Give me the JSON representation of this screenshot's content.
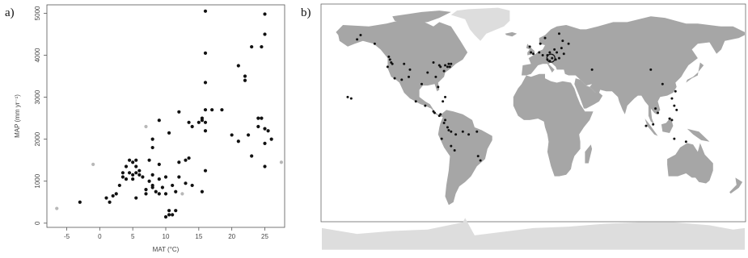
{
  "panels": {
    "a_label": "a)",
    "b_label": "b)"
  },
  "chart_data": [
    {
      "type": "scatter",
      "title": "",
      "xlabel": "MAT (°C)",
      "ylabel": "MAP (mm yr⁻¹)",
      "xlim": [
        -8,
        28
      ],
      "ylim": [
        -100,
        5200
      ],
      "xticks": [
        -5,
        0,
        5,
        10,
        15,
        20,
        25
      ],
      "yticks": [
        0,
        1000,
        2000,
        3000,
        4000,
        5000
      ],
      "grid": false,
      "series": [
        {
          "color": "#111111",
          "points": [
            [
              16,
              5050
            ],
            [
              25,
              4980
            ],
            [
              25,
              4500
            ],
            [
              16,
              4050
            ],
            [
              23,
              4200
            ],
            [
              24.5,
              4200
            ],
            [
              21,
              3750
            ],
            [
              22,
              3500
            ],
            [
              22,
              3400
            ],
            [
              16,
              3350
            ],
            [
              16,
              2700
            ],
            [
              17,
              2700
            ],
            [
              18.5,
              2700
            ],
            [
              12,
              2650
            ],
            [
              15.5,
              2500
            ],
            [
              15.5,
              2450
            ],
            [
              16,
              2400
            ],
            [
              13.5,
              2400
            ],
            [
              15,
              2400
            ],
            [
              14,
              2300
            ],
            [
              9,
              2450
            ],
            [
              24,
              2500
            ],
            [
              24.5,
              2500
            ],
            [
              24,
              2300
            ],
            [
              25,
              2250
            ],
            [
              25.5,
              2200
            ],
            [
              22.5,
              2100
            ],
            [
              20,
              2100
            ],
            [
              16,
              2200
            ],
            [
              10.5,
              2150
            ],
            [
              21,
              1950
            ],
            [
              26,
              2000
            ],
            [
              25,
              1900
            ],
            [
              8,
              2000
            ],
            [
              8,
              1800
            ],
            [
              23,
              1600
            ],
            [
              13,
              1500
            ],
            [
              13.5,
              1550
            ],
            [
              12,
              1450
            ],
            [
              9,
              1400
            ],
            [
              25,
              1350
            ],
            [
              7.5,
              1500
            ],
            [
              5.5,
              1500
            ],
            [
              4.5,
              1500
            ],
            [
              16,
              1250
            ],
            [
              5,
              1450
            ],
            [
              5.5,
              1350
            ],
            [
              4,
              1350
            ],
            [
              6,
              1250
            ],
            [
              4.5,
              1200
            ],
            [
              5.5,
              1200
            ],
            [
              5,
              1150
            ],
            [
              6,
              1150
            ],
            [
              6.5,
              1100
            ],
            [
              5,
              1050
            ],
            [
              3.5,
              1200
            ],
            [
              3.5,
              1100
            ],
            [
              4,
              1050
            ],
            [
              8,
              1150
            ],
            [
              10,
              1100
            ],
            [
              12,
              1100
            ],
            [
              9,
              1050
            ],
            [
              7.5,
              1000
            ],
            [
              11,
              900
            ],
            [
              13,
              950
            ],
            [
              8,
              900
            ],
            [
              8,
              850
            ],
            [
              9.5,
              850
            ],
            [
              7,
              800
            ],
            [
              8.5,
              750
            ],
            [
              10,
              700
            ],
            [
              11.5,
              750
            ],
            [
              14,
              900
            ],
            [
              3,
              900
            ],
            [
              7,
              700
            ],
            [
              9,
              700
            ],
            [
              5.5,
              600
            ],
            [
              2.5,
              700
            ],
            [
              2,
              650
            ],
            [
              1,
              600
            ],
            [
              1.5,
              500
            ],
            [
              -3,
              500
            ],
            [
              10.5,
              300
            ],
            [
              11.5,
              300
            ],
            [
              10.5,
              200
            ],
            [
              11,
              200
            ],
            [
              10,
              150
            ],
            [
              15.5,
              750
            ]
          ]
        },
        {
          "color": "#b8b8b8",
          "points": [
            [
              7,
              2300
            ],
            [
              -1,
              1400
            ],
            [
              -6.5,
              350
            ],
            [
              12.5,
              700
            ],
            [
              27.5,
              1450
            ]
          ]
        }
      ]
    },
    {
      "type": "map",
      "title": "",
      "projection": "equirectangular",
      "land_color": "#a6a6a6",
      "ice_color": "#dddddd",
      "site_color": "#111111",
      "sites": [
        [
          -158,
          21
        ],
        [
          -155,
          20
        ],
        [
          -150,
          61
        ],
        [
          -147,
          64
        ],
        [
          -135,
          58
        ],
        [
          -123,
          49
        ],
        [
          -122,
          47
        ],
        [
          -121,
          45
        ],
        [
          -120,
          44
        ],
        [
          -124,
          42
        ],
        [
          -118,
          34
        ],
        [
          -110,
          44
        ],
        [
          -105,
          40
        ],
        [
          -112,
          33
        ],
        [
          -106,
          35
        ],
        [
          -95,
          30
        ],
        [
          -90,
          38
        ],
        [
          -85,
          45
        ],
        [
          -80,
          43
        ],
        [
          -79,
          42
        ],
        [
          -76,
          39
        ],
        [
          -75,
          43
        ],
        [
          -73,
          42
        ],
        [
          -72,
          44
        ],
        [
          -70,
          44
        ],
        [
          -71,
          42
        ],
        [
          -83,
          35
        ],
        [
          -81,
          28
        ],
        [
          -77,
          18
        ],
        [
          -75,
          21
        ],
        [
          -100,
          18
        ],
        [
          -92,
          15
        ],
        [
          -85,
          11
        ],
        [
          -84,
          10
        ],
        [
          -80,
          8
        ],
        [
          -79,
          9
        ],
        [
          -75,
          5
        ],
        [
          -76,
          3
        ],
        [
          -73,
          0
        ],
        [
          -72,
          -2
        ],
        [
          -70,
          -3
        ],
        [
          -66,
          -5
        ],
        [
          -60,
          -3
        ],
        [
          -55,
          -5
        ],
        [
          -78,
          -8
        ],
        [
          -70,
          -13
        ],
        [
          -67,
          -16
        ],
        [
          -48,
          -3
        ],
        [
          -45,
          -23
        ],
        [
          -47,
          -20
        ],
        [
          -2,
          52
        ],
        [
          0,
          51
        ],
        [
          5,
          52
        ],
        [
          8,
          50
        ],
        [
          12,
          50
        ],
        [
          14,
          52
        ],
        [
          18,
          54
        ],
        [
          20,
          52
        ],
        [
          24,
          55
        ],
        [
          12,
          47
        ],
        [
          14,
          46
        ],
        [
          16,
          48
        ],
        [
          19,
          47
        ],
        [
          22,
          48
        ],
        [
          25,
          60
        ],
        [
          22,
          65
        ],
        [
          10,
          62
        ],
        [
          6,
          58
        ],
        [
          -3,
          56
        ],
        [
          30,
          58
        ],
        [
          26,
          51
        ],
        [
          50,
          40
        ],
        [
          100,
          40
        ],
        [
          110,
          30
        ],
        [
          104,
          13
        ],
        [
          106,
          10
        ],
        [
          118,
          20
        ],
        [
          121,
          25
        ],
        [
          120,
          15
        ],
        [
          122,
          12
        ],
        [
          116,
          6
        ],
        [
          118,
          5
        ],
        [
          120,
          -8
        ],
        [
          130,
          -10
        ],
        [
          96,
          1
        ],
        [
          102,
          2
        ]
      ]
    }
  ]
}
